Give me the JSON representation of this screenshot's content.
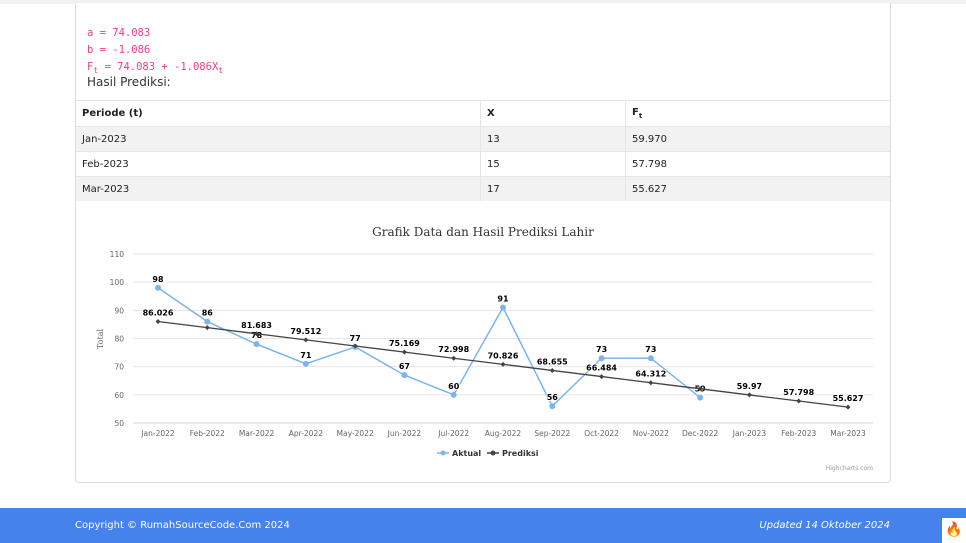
{
  "params": {
    "a_line": "a = 74.083",
    "b_line": "b = -1.086",
    "ft_prefix": "F",
    "ft_sub": "t",
    "ft_mid": " = 74.083 + -1.086X",
    "ft_sub2": "t"
  },
  "hasil_label": "Hasil Prediksi:",
  "table": {
    "headers": [
      "Periode (t)",
      "X",
      "F",
      "t"
    ],
    "rows": [
      [
        "Jan-2023",
        "13",
        "59.970"
      ],
      [
        "Feb-2023",
        "15",
        "57.798"
      ],
      [
        "Mar-2023",
        "17",
        "55.627"
      ]
    ]
  },
  "chart_data": {
    "type": "line",
    "title": "Grafik Data dan Hasil Prediksi Lahir",
    "ylabel": "Total",
    "xlabel": "",
    "ylim": [
      50,
      110
    ],
    "yticks": [
      50,
      60,
      70,
      80,
      90,
      100,
      110
    ],
    "grid": true,
    "legend_placement": "bottom",
    "credits": "Highcharts.com",
    "categories": [
      "Jan-2022",
      "Feb-2022",
      "Mar-2022",
      "Apr-2022",
      "May-2022",
      "Jun-2022",
      "Jul-2022",
      "Aug-2022",
      "Sep-2022",
      "Oct-2022",
      "Nov-2022",
      "Dec-2022",
      "Jan-2023",
      "Feb-2023",
      "Mar-2023"
    ],
    "series": [
      {
        "name": "Aktual",
        "color": "#7cb5ec",
        "values": [
          98,
          86,
          78,
          71,
          77,
          67,
          60,
          91,
          56,
          73,
          73,
          59,
          null,
          null,
          null
        ]
      },
      {
        "name": "Prediksi",
        "color": "#434348",
        "values": [
          86.026,
          83.855,
          81.683,
          79.512,
          77.341,
          75.169,
          72.998,
          70.826,
          68.655,
          66.484,
          64.312,
          62.141,
          59.97,
          57.798,
          55.627
        ],
        "shown_labels": [
          true,
          false,
          true,
          true,
          false,
          true,
          true,
          true,
          true,
          true,
          true,
          false,
          true,
          true,
          true
        ]
      }
    ]
  },
  "footer": {
    "copyright": "Copyright © RumahSourceCode.Com 2024",
    "updated": "Updated 14 Oktober 2024",
    "flame_icon": "flame-icon"
  }
}
